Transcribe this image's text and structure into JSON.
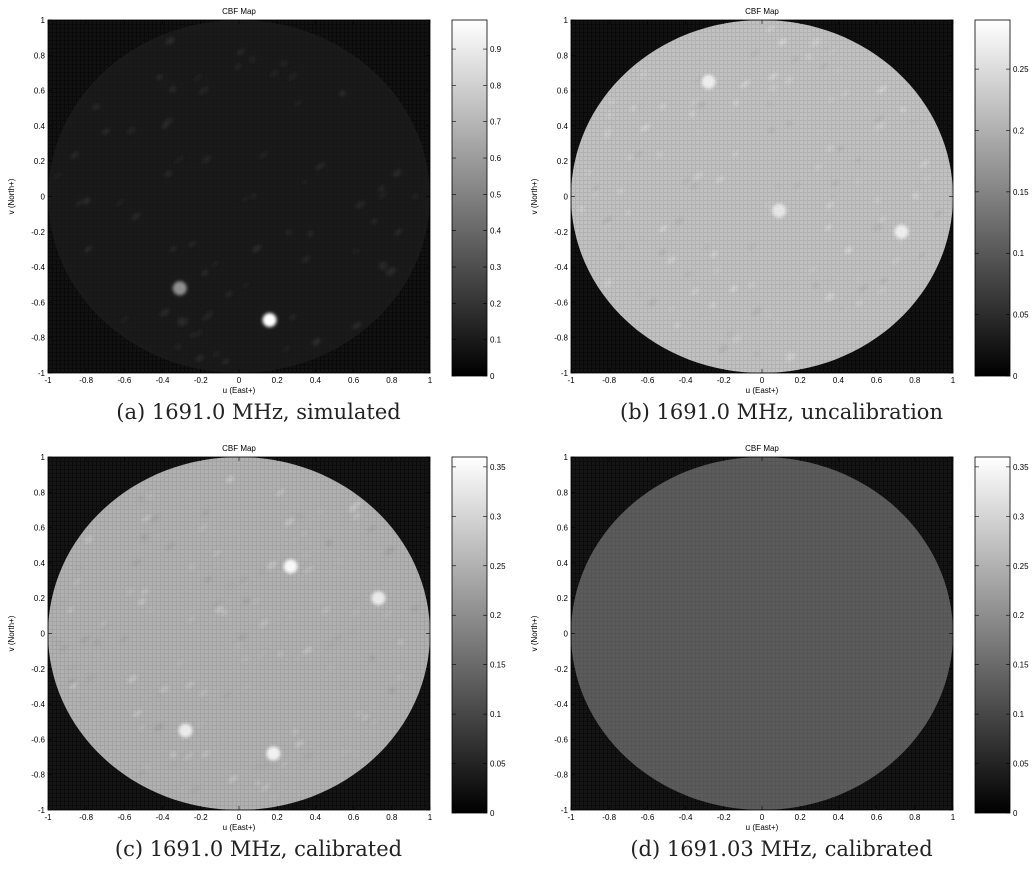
{
  "colors": {
    "colormap": "gray",
    "background": "#ffffff"
  },
  "chart_data": [
    {
      "type": "heatmap",
      "title": "CBF Map",
      "xlabel": "u (East+)",
      "ylabel": "v (North+)",
      "xlim": [
        -1,
        1
      ],
      "ylim": [
        -1,
        1
      ],
      "xticks": [
        -1,
        -0.8,
        -0.6,
        -0.4,
        -0.2,
        0,
        0.2,
        0.4,
        0.6,
        0.8,
        1
      ],
      "yticks": [
        -1,
        -0.8,
        -0.6,
        -0.4,
        -0.2,
        0,
        0.2,
        0.4,
        0.6,
        0.8,
        1
      ],
      "colorbar": {
        "range": [
          0,
          0.98
        ],
        "ticks": [
          0,
          0.1,
          0.2,
          0.3,
          0.4,
          0.5,
          0.6,
          0.7,
          0.8,
          0.9
        ]
      },
      "disk_level": 0.1,
      "outside_level": 0.07,
      "sources": [
        {
          "u": -0.31,
          "v": -0.52,
          "value": 0.55
        },
        {
          "u": 0.16,
          "v": -0.7,
          "value": 0.98
        }
      ],
      "caption": "(a) 1691.0 MHz, simulated"
    },
    {
      "type": "heatmap",
      "title": "CBF Map",
      "xlabel": "u (East+)",
      "ylabel": "v (North+)",
      "xlim": [
        -1,
        1
      ],
      "ylim": [
        -1,
        1
      ],
      "xticks": [
        -1,
        -0.8,
        -0.6,
        -0.4,
        -0.2,
        0,
        0.2,
        0.4,
        0.6,
        0.8,
        1
      ],
      "yticks": [
        -1,
        -0.8,
        -0.6,
        -0.4,
        -0.2,
        0,
        0.2,
        0.4,
        0.6,
        0.8,
        1
      ],
      "colorbar": {
        "range": [
          0,
          0.29
        ],
        "ticks": [
          0,
          0.05,
          0.1,
          0.15,
          0.2,
          0.25
        ]
      },
      "disk_level": 0.22,
      "outside_level": 0.02,
      "sources": [
        {
          "u": -0.28,
          "v": 0.65,
          "value": 0.27
        },
        {
          "u": 0.73,
          "v": -0.2,
          "value": 0.27
        },
        {
          "u": 0.09,
          "v": -0.08,
          "value": 0.26
        }
      ],
      "caption": "(b) 1691.0 MHz, uncalibration"
    },
    {
      "type": "heatmap",
      "title": "CBF Map",
      "xlabel": "u (East+)",
      "ylabel": "v (North+)",
      "xlim": [
        -1,
        1
      ],
      "ylim": [
        -1,
        1
      ],
      "xticks": [
        -1,
        -0.8,
        -0.6,
        -0.4,
        -0.2,
        0,
        0.2,
        0.4,
        0.6,
        0.8,
        1
      ],
      "yticks": [
        -1,
        -0.8,
        -0.6,
        -0.4,
        -0.2,
        0,
        0.2,
        0.4,
        0.6,
        0.8,
        1
      ],
      "colorbar": {
        "range": [
          0,
          0.36
        ],
        "ticks": [
          0,
          0.05,
          0.1,
          0.15,
          0.2,
          0.25,
          0.3,
          0.35
        ]
      },
      "disk_level": 0.25,
      "outside_level": 0.03,
      "sources": [
        {
          "u": 0.27,
          "v": 0.38,
          "value": 0.35
        },
        {
          "u": 0.18,
          "v": -0.68,
          "value": 0.34
        },
        {
          "u": -0.28,
          "v": -0.55,
          "value": 0.33
        },
        {
          "u": 0.73,
          "v": 0.2,
          "value": 0.33
        }
      ],
      "caption": "(c) 1691.0 MHz, calibrated"
    },
    {
      "type": "heatmap",
      "title": "CBF Map",
      "xlabel": "u (East+)",
      "ylabel": "v (North+)",
      "xlim": [
        -1,
        1
      ],
      "ylim": [
        -1,
        1
      ],
      "xticks": [
        -1,
        -0.8,
        -0.6,
        -0.4,
        -0.2,
        0,
        0.2,
        0.4,
        0.6,
        0.8,
        1
      ],
      "yticks": [
        -1,
        -0.8,
        -0.6,
        -0.4,
        -0.2,
        0,
        0.2,
        0.4,
        0.6,
        0.8,
        1
      ],
      "colorbar": {
        "range": [
          0,
          0.36
        ],
        "ticks": [
          0,
          0.05,
          0.1,
          0.15,
          0.2,
          0.25,
          0.3,
          0.35
        ]
      },
      "disk_level": 0.13,
      "outside_level": 0.03,
      "sources": [],
      "caption": "(d) 1691.03 MHz, calibrated"
    }
  ]
}
